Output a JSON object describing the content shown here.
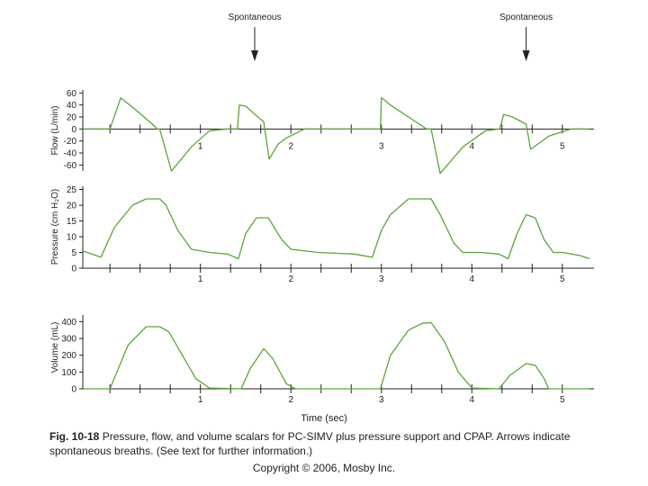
{
  "figure": {
    "label": "Fig. 10-18",
    "caption": "Pressure, flow, and volume scalars for PC-SIMV plus pressure support and CPAP. Arrows indicate spontaneous breaths. (See text for further information.)",
    "copyright": "Copyright © 2006, Mosby Inc."
  },
  "chart_data": {
    "type": "line",
    "xlabel": "Time (sec)",
    "xlim": [
      -0.3,
      5.35
    ],
    "x_ticks": [
      1,
      2,
      3,
      4,
      5
    ],
    "annotations": [
      {
        "text": "Spontaneous",
        "x": 1.6
      },
      {
        "text": "Spontaneous",
        "x": 4.6
      }
    ],
    "panels": [
      {
        "name": "flow",
        "ylabel": "Flow (L/min)",
        "ylim": [
          -70,
          65
        ],
        "y_ticks": [
          60,
          40,
          20,
          0,
          -20,
          -40,
          -60
        ],
        "x_tick_labels": [
          "1",
          "2",
          "3",
          "4",
          "5"
        ],
        "x": [
          -0.3,
          -0.05,
          0.0,
          0.12,
          0.3,
          0.5,
          0.52,
          0.55,
          0.68,
          0.9,
          1.1,
          1.3,
          1.4,
          1.41,
          1.43,
          1.5,
          1.65,
          1.7,
          1.71,
          1.76,
          1.86,
          1.95,
          2.15,
          2.8,
          2.99,
          3.0,
          3.02,
          3.1,
          3.3,
          3.5,
          3.52,
          3.55,
          3.65,
          3.9,
          4.15,
          4.3,
          4.31,
          4.35,
          4.45,
          4.6,
          4.61,
          4.65,
          4.85,
          5.1,
          5.3
        ],
        "y": [
          0,
          0,
          0,
          52,
          30,
          4,
          0,
          0,
          -70,
          -30,
          -3,
          0,
          0,
          0,
          40,
          38,
          18,
          12,
          0,
          -50,
          -25,
          -15,
          0,
          0,
          0,
          52,
          50,
          40,
          20,
          0,
          0,
          0,
          -74,
          -30,
          -3,
          0,
          0,
          24,
          20,
          8,
          0,
          -34,
          -12,
          0,
          0
        ]
      },
      {
        "name": "pressure",
        "ylabel": "Pressure (cm H₂O)",
        "ylim": [
          0,
          26
        ],
        "y_ticks": [
          25,
          20,
          15,
          10,
          5,
          0
        ],
        "x_tick_labels": [
          "1",
          "2",
          "3",
          "4",
          "5"
        ],
        "x": [
          -0.3,
          -0.1,
          0.05,
          0.25,
          0.4,
          0.55,
          0.62,
          0.75,
          0.9,
          1.1,
          1.3,
          1.42,
          1.5,
          1.62,
          1.75,
          1.9,
          2.0,
          2.3,
          2.7,
          2.9,
          3.0,
          3.1,
          3.3,
          3.55,
          3.65,
          3.8,
          3.9,
          4.1,
          4.3,
          4.4,
          4.5,
          4.6,
          4.7,
          4.8,
          4.9,
          5.0,
          5.2,
          5.3
        ],
        "y": [
          5.5,
          3.5,
          13,
          20,
          22,
          22,
          20,
          12,
          6,
          5,
          4.5,
          3,
          11,
          16,
          16,
          9,
          6,
          5,
          4.5,
          3.5,
          12,
          17,
          22,
          22,
          17,
          8,
          5,
          5,
          4.5,
          3,
          11,
          17,
          16,
          9,
          5,
          5,
          4,
          3
        ]
      },
      {
        "name": "volume",
        "ylabel": "Volume (mL)",
        "ylim": [
          0,
          440
        ],
        "y_ticks": [
          400,
          300,
          200,
          100,
          0
        ],
        "x_tick_labels": [
          "1",
          "2",
          "3",
          "4",
          "5"
        ],
        "x": [
          -0.3,
          0.0,
          0.2,
          0.4,
          0.55,
          0.65,
          0.8,
          0.95,
          1.1,
          1.45,
          1.55,
          1.7,
          1.8,
          1.95,
          2.05,
          2.8,
          2.99,
          3.1,
          3.3,
          3.45,
          3.55,
          3.7,
          3.85,
          4.0,
          4.3,
          4.42,
          4.6,
          4.7,
          4.8,
          4.85,
          5.3
        ],
        "y": [
          0,
          0,
          260,
          370,
          370,
          340,
          200,
          60,
          5,
          0,
          120,
          240,
          180,
          30,
          0,
          0,
          0,
          200,
          350,
          390,
          395,
          280,
          100,
          5,
          0,
          80,
          150,
          140,
          60,
          0,
          0
        ]
      }
    ]
  }
}
